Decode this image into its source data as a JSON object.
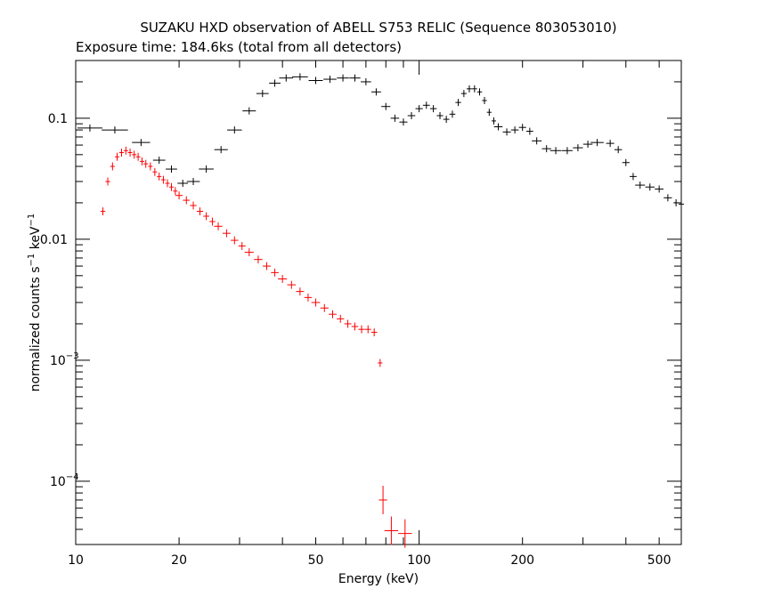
{
  "chart_data": {
    "type": "scatter",
    "title": "SUZAKU HXD observation of ABELL S753 RELIC (Sequence 803053010)",
    "subtitle": "Exposure time: 184.6ks (total from all detectors)",
    "xlabel": "Energy (keV)",
    "ylabel_parts": {
      "a": "normalized counts s",
      "b": "−1",
      "c": " keV",
      "d": "−1"
    },
    "x_scale": "log",
    "y_scale": "log",
    "xlim": [
      10,
      580
    ],
    "ylim": [
      3e-05,
      0.3
    ],
    "x_ticks": [
      {
        "value": 10,
        "label": "10"
      },
      {
        "value": 20,
        "label": "20"
      },
      {
        "value": 50,
        "label": "50"
      },
      {
        "value": 100,
        "label": "100"
      },
      {
        "value": 200,
        "label": "200"
      },
      {
        "value": 500,
        "label": "500"
      }
    ],
    "y_ticks": [
      {
        "value": 0.1,
        "base": "0.1",
        "sup": ""
      },
      {
        "value": 0.01,
        "base": "0.01",
        "sup": ""
      },
      {
        "value": 0.001,
        "base": "10",
        "sup": "−3"
      },
      {
        "value": 0.0001,
        "base": "10",
        "sup": "−4"
      }
    ],
    "grid": false,
    "legend": "none",
    "series": [
      {
        "color": "#000000",
        "style": "error-crosses",
        "points": [
          [
            11,
            0.083
          ],
          [
            13,
            0.08
          ],
          [
            15.5,
            0.063
          ],
          [
            17.5,
            0.045
          ],
          [
            19,
            0.038
          ],
          [
            20.5,
            0.029
          ],
          [
            22,
            0.03
          ],
          [
            24,
            0.038
          ],
          [
            26.5,
            0.055
          ],
          [
            29,
            0.08
          ],
          [
            32,
            0.115
          ],
          [
            35,
            0.16
          ],
          [
            38,
            0.195
          ],
          [
            41,
            0.215
          ],
          [
            45,
            0.22
          ],
          [
            50,
            0.205
          ],
          [
            55,
            0.21
          ],
          [
            60,
            0.215
          ],
          [
            65,
            0.215
          ],
          [
            70,
            0.2
          ],
          [
            75,
            0.165
          ],
          [
            80,
            0.125
          ],
          [
            85,
            0.1
          ],
          [
            90,
            0.093
          ],
          [
            95,
            0.105
          ],
          [
            100,
            0.12
          ],
          [
            105,
            0.128
          ],
          [
            110,
            0.12
          ],
          [
            115,
            0.105
          ],
          [
            120,
            0.098
          ],
          [
            125,
            0.108
          ],
          [
            130,
            0.135
          ],
          [
            135,
            0.16
          ],
          [
            140,
            0.175
          ],
          [
            145,
            0.175
          ],
          [
            150,
            0.165
          ],
          [
            155,
            0.14
          ],
          [
            160,
            0.112
          ],
          [
            165,
            0.095
          ],
          [
            170,
            0.085
          ],
          [
            180,
            0.077
          ],
          [
            190,
            0.08
          ],
          [
            200,
            0.084
          ],
          [
            210,
            0.078
          ],
          [
            220,
            0.065
          ],
          [
            235,
            0.056
          ],
          [
            250,
            0.054
          ],
          [
            270,
            0.054
          ],
          [
            290,
            0.057
          ],
          [
            310,
            0.061
          ],
          [
            330,
            0.063
          ],
          [
            360,
            0.062
          ],
          [
            380,
            0.055
          ],
          [
            400,
            0.043
          ],
          [
            420,
            0.033
          ],
          [
            440,
            0.028
          ],
          [
            470,
            0.027
          ],
          [
            500,
            0.026
          ],
          [
            530,
            0.022
          ],
          [
            560,
            0.02
          ],
          [
            580,
            0.0195
          ]
        ]
      },
      {
        "color": "#ff0000",
        "style": "error-crosses",
        "points": [
          [
            12.0,
            0.017
          ],
          [
            12.4,
            0.03
          ],
          [
            12.8,
            0.04
          ],
          [
            13.2,
            0.048
          ],
          [
            13.6,
            0.052
          ],
          [
            14.0,
            0.054
          ],
          [
            14.4,
            0.052
          ],
          [
            14.8,
            0.05
          ],
          [
            15.2,
            0.048
          ],
          [
            15.6,
            0.044
          ],
          [
            16.0,
            0.042
          ],
          [
            16.5,
            0.04
          ],
          [
            17.0,
            0.036
          ],
          [
            17.5,
            0.033
          ],
          [
            18.0,
            0.031
          ],
          [
            18.5,
            0.029
          ],
          [
            19.0,
            0.027
          ],
          [
            19.5,
            0.025
          ],
          [
            20.0,
            0.023
          ],
          [
            21.0,
            0.021
          ],
          [
            22.0,
            0.019
          ],
          [
            23.0,
            0.017
          ],
          [
            24.0,
            0.0155
          ],
          [
            25.0,
            0.014
          ],
          [
            26.0,
            0.0128
          ],
          [
            27.5,
            0.0112
          ],
          [
            29.0,
            0.0098
          ],
          [
            30.5,
            0.0088
          ],
          [
            32.0,
            0.0078
          ],
          [
            34.0,
            0.0068
          ],
          [
            36.0,
            0.006
          ],
          [
            38.0,
            0.0053
          ],
          [
            40.0,
            0.0047
          ],
          [
            42.5,
            0.0042
          ],
          [
            45.0,
            0.0037
          ],
          [
            47.5,
            0.0033
          ],
          [
            50.0,
            0.003
          ],
          [
            53.0,
            0.0027
          ],
          [
            56.0,
            0.0024
          ],
          [
            59.0,
            0.0022
          ],
          [
            62.0,
            0.002
          ],
          [
            65.0,
            0.0019
          ],
          [
            68.0,
            0.0018
          ],
          [
            71.0,
            0.0018
          ],
          [
            74.0,
            0.0017
          ],
          [
            77.0,
            0.00095
          ],
          [
            78.5,
            7e-05
          ],
          [
            83.0,
            3.9e-05
          ],
          [
            91.0,
            3.7e-05
          ]
        ]
      }
    ]
  }
}
